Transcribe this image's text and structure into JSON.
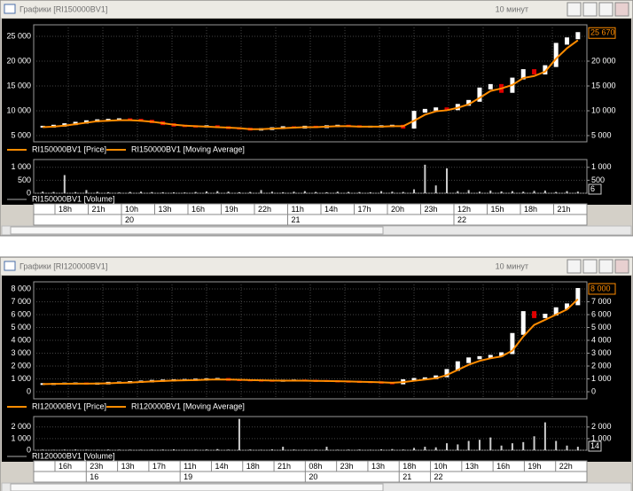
{
  "windows": [
    {
      "title": "Графики [RI150000BV1]",
      "timeframe": "10 минут",
      "price": {
        "type": "candlestick",
        "series_name": "RI150000BV1 [Price]",
        "ma_name": "RI150000BV1 [Moving Average]",
        "values": [
          6800,
          7000,
          7300,
          7600,
          7900,
          8100,
          8200,
          8300,
          8200,
          8000,
          7700,
          7300,
          7000,
          6900,
          6800,
          6900,
          6700,
          6500,
          6400,
          6200,
          6300,
          6500,
          6700,
          6600,
          6800,
          6700,
          6900,
          7000,
          6900,
          6800,
          6800,
          6900,
          7000,
          6600,
          9800,
          10200,
          10500,
          10300,
          11200,
          12000,
          14500,
          15200,
          13800,
          16500,
          18200,
          17500,
          19000,
          23500,
          24600,
          25670
        ],
        "ma": [
          6700,
          6800,
          7000,
          7300,
          7600,
          7900,
          8000,
          8100,
          8100,
          8000,
          7800,
          7500,
          7200,
          7000,
          6900,
          6800,
          6700,
          6600,
          6500,
          6300,
          6300,
          6400,
          6500,
          6600,
          6700,
          6700,
          6800,
          6900,
          6900,
          6800,
          6800,
          6800,
          6900,
          6900,
          8000,
          9200,
          9900,
          10100,
          10600,
          11300,
          12600,
          14000,
          14500,
          15200,
          16600,
          17000,
          17900,
          20500,
          22600,
          24200
        ],
        "ylim": [
          3750,
          27320
        ],
        "yticks": [
          {
            "value": 25000,
            "label": "25 000"
          },
          {
            "value": 20000,
            "label": "20 000"
          },
          {
            "value": 15000,
            "label": "15 000"
          },
          {
            "value": 10000,
            "label": "10 000"
          },
          {
            "value": 5000,
            "label": "5 000"
          }
        ],
        "yticks_right": [
          {
            "value": 20000,
            "label": "20 000"
          },
          {
            "value": 15000,
            "label": "15 000"
          },
          {
            "value": 10000,
            "label": "10 000"
          },
          {
            "value": 5000,
            "label": "5 000"
          }
        ],
        "badge": "25 670"
      },
      "volume": {
        "type": "bar",
        "series_name": "RI150000BV1 [Volume]",
        "values": [
          60,
          50,
          700,
          45,
          120,
          55,
          40,
          30,
          50,
          60,
          45,
          40,
          35,
          30,
          50,
          70,
          80,
          60,
          40,
          50,
          120,
          60,
          40,
          60,
          80,
          50,
          40,
          60,
          50,
          45,
          40,
          80,
          60,
          50,
          150,
          1100,
          300,
          960,
          80,
          120,
          60,
          100,
          70,
          80,
          60,
          90,
          100,
          50,
          80,
          60
        ],
        "ylim": [
          0,
          1300
        ],
        "yticks": [
          {
            "value": 1000,
            "label": "1 000"
          },
          500,
          0
        ],
        "yticks_right": [
          {
            "value": 1000,
            "label": "1 000"
          },
          500
        ],
        "badge": "6"
      },
      "hours": [
        "18h",
        "21h",
        "10h",
        "13h",
        "16h",
        "19h",
        "22h",
        "11h",
        "14h",
        "17h",
        "20h",
        "23h",
        "12h",
        "15h",
        "18h",
        "21h"
      ],
      "dates": [
        null,
        null,
        "20",
        null,
        null,
        null,
        null,
        "21",
        null,
        null,
        null,
        null,
        "22",
        null,
        null,
        null
      ]
    },
    {
      "title": "Графики [RI120000BV1]",
      "timeframe": "10 минут",
      "price": {
        "type": "candlestick",
        "series_name": "RI120000BV1 [Price]",
        "ma_name": "RI120000BV1 [Moving Average]",
        "values": [
          600,
          620,
          640,
          650,
          620,
          640,
          700,
          720,
          760,
          800,
          850,
          880,
          900,
          920,
          950,
          980,
          1000,
          920,
          900,
          880,
          860,
          850,
          870,
          880,
          860,
          840,
          830,
          800,
          780,
          760,
          740,
          700,
          650,
          900,
          1000,
          1050,
          1200,
          1700,
          2300,
          2600,
          2700,
          2800,
          3000,
          4500,
          6200,
          5800,
          6000,
          6500,
          6800,
          8000
        ],
        "ma": [
          600,
          610,
          620,
          630,
          630,
          640,
          660,
          690,
          720,
          760,
          800,
          840,
          870,
          890,
          910,
          940,
          960,
          950,
          930,
          910,
          890,
          870,
          860,
          860,
          860,
          850,
          840,
          820,
          800,
          780,
          760,
          730,
          700,
          750,
          850,
          950,
          1050,
          1300,
          1700,
          2100,
          2400,
          2600,
          2750,
          3200,
          4300,
          5200,
          5600,
          6000,
          6400,
          7200
        ],
        "ylim": [
          -550,
          8550
        ],
        "yticks": [
          {
            "value": 8000,
            "label": "8 000"
          },
          {
            "value": 7000,
            "label": "7 000"
          },
          {
            "value": 6000,
            "label": "6 000"
          },
          {
            "value": 5000,
            "label": "5 000"
          },
          {
            "value": 4000,
            "label": "4 000"
          },
          {
            "value": 3000,
            "label": "3 000"
          },
          {
            "value": 2000,
            "label": "2 000"
          },
          {
            "value": 1000,
            "label": "1 000"
          },
          0
        ],
        "yticks_right": [
          {
            "value": 7000,
            "label": "7 000"
          },
          {
            "value": 6000,
            "label": "6 000"
          },
          {
            "value": 5000,
            "label": "5 000"
          },
          {
            "value": 4000,
            "label": "4 000"
          },
          {
            "value": 3000,
            "label": "3 000"
          },
          {
            "value": 2000,
            "label": "2 000"
          },
          {
            "value": 1000,
            "label": "1 000"
          },
          0
        ],
        "badge": "8 000"
      },
      "volume": {
        "type": "bar",
        "series_name": "RI120000BV1 [Volume]",
        "values": [
          50,
          40,
          60,
          70,
          50,
          40,
          60,
          50,
          45,
          40,
          50,
          60,
          80,
          40,
          50,
          60,
          100,
          50,
          2700,
          60,
          40,
          80,
          300,
          60,
          40,
          50,
          300,
          40,
          50,
          60,
          40,
          80,
          100,
          60,
          200,
          300,
          250,
          600,
          500,
          800,
          900,
          1100,
          400,
          600,
          700,
          1200,
          2400,
          800,
          400,
          300
        ],
        "ylim": [
          0,
          2900
        ],
        "yticks": [
          {
            "value": 2000,
            "label": "2 000"
          },
          {
            "value": 1000,
            "label": "1 000"
          },
          0
        ],
        "yticks_right": [
          {
            "value": 2000,
            "label": "2 000"
          },
          {
            "value": 1000,
            "label": "1 000"
          }
        ],
        "badge": "14"
      },
      "hours": [
        "16h",
        "23h",
        "13h",
        "17h",
        "11h",
        "14h",
        "18h",
        "21h",
        "08h",
        "23h",
        "13h",
        "18h",
        "10h",
        "13h",
        "16h",
        "19h",
        "22h"
      ],
      "dates": [
        null,
        "16",
        null,
        null,
        "19",
        null,
        null,
        null,
        "20",
        null,
        null,
        "21",
        "22",
        null,
        null,
        null,
        null
      ]
    }
  ]
}
